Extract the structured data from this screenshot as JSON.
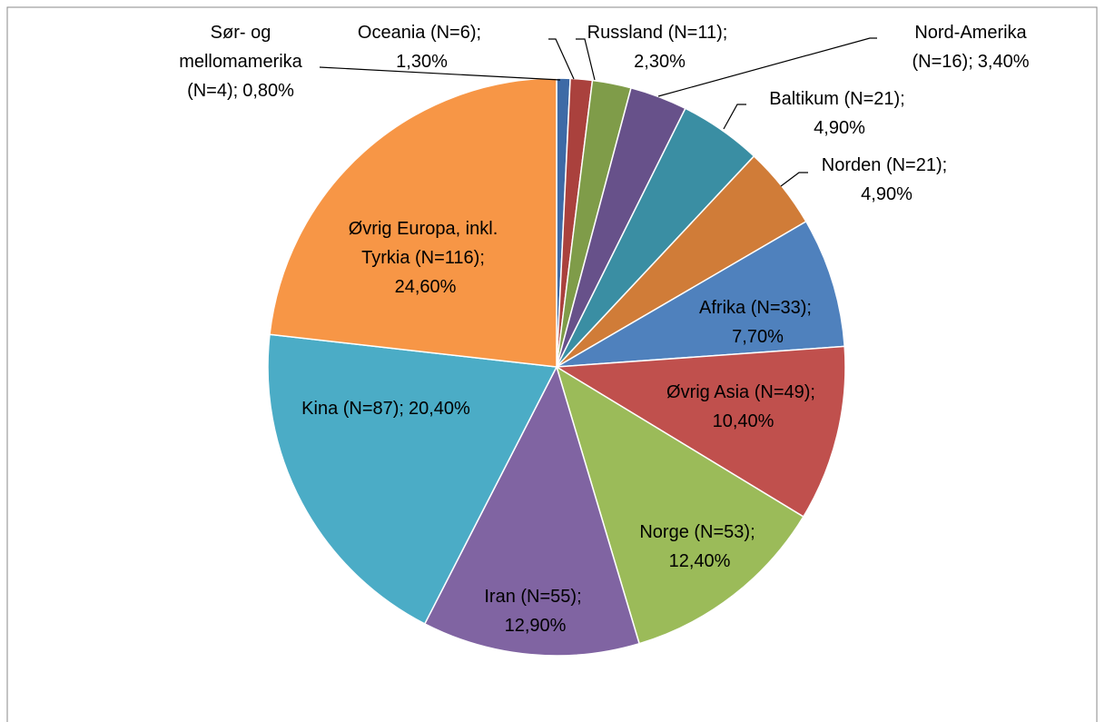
{
  "chart_data": {
    "type": "pie",
    "categories": [
      "Sør- og mellomamerika (N=4);",
      "Oceania (N=6);",
      "Russland (N=11);",
      "Nord-Amerika (N=16);",
      "Baltikum (N=21);",
      "Norden (N=21);",
      "Afrika (N=33);",
      "Øvrig Asia (N=49);",
      "Norge (N=53);",
      "Iran (N=55);",
      "Kina (N=87);",
      "Øvrig Europa, inkl. Tyrkia (N=116);"
    ],
    "values": [
      0.8,
      1.3,
      2.3,
      3.4,
      4.9,
      4.9,
      7.7,
      10.4,
      12.4,
      12.9,
      20.4,
      24.6
    ],
    "value_labels": [
      "0,80%",
      "1,30%",
      "2,30%",
      "3,40%",
      "4,90%",
      "4,90%",
      "7,70%",
      "10,40%",
      "12,40%",
      "12,90%",
      "20,40%",
      "24,60%"
    ],
    "colors": [
      "#3d6aa6",
      "#aa413d",
      "#7f9c49",
      "#67518a",
      "#3a8ea3",
      "#d07c38",
      "#4f81bd",
      "#c0504d",
      "#9bbb59",
      "#8064a2",
      "#4bacc6",
      "#f79646"
    ]
  }
}
